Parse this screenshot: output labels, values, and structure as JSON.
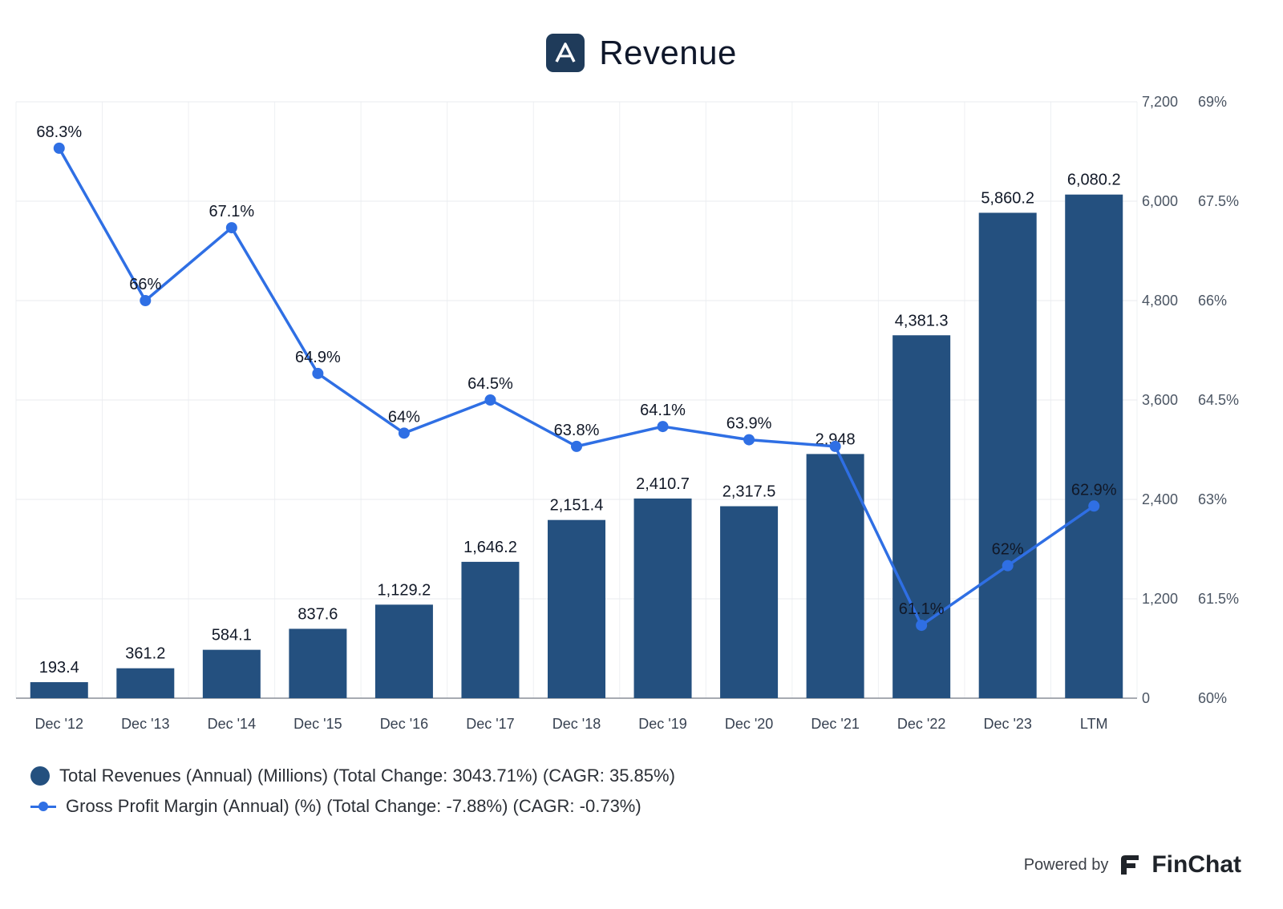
{
  "header": {
    "title": "Revenue",
    "logo_icon": "logo-a-icon"
  },
  "chart_data": {
    "type": "bar",
    "categories": [
      "Dec '12",
      "Dec '13",
      "Dec '14",
      "Dec '15",
      "Dec '16",
      "Dec '17",
      "Dec '18",
      "Dec '19",
      "Dec '20",
      "Dec '21",
      "Dec '22",
      "Dec '23",
      "LTM"
    ],
    "series": [
      {
        "name": "Total Revenues (Annual) (Millions) (Total Change: 3043.71%) (CAGR: 35.85%)",
        "type": "bar",
        "axis": "left",
        "color": "#24507f",
        "values": [
          193.4,
          361.2,
          584.1,
          837.6,
          1129.2,
          1646.2,
          2151.4,
          2410.7,
          2317.5,
          2948,
          4381.3,
          5860.2,
          6080.2
        ],
        "labels": [
          "193.4",
          "361.2",
          "584.1",
          "837.6",
          "1,129.2",
          "1,646.2",
          "2,151.4",
          "2,410.7",
          "2,317.5",
          "2,948",
          "4,381.3",
          "5,860.2",
          "6,080.2"
        ]
      },
      {
        "name": "Gross Profit Margin (Annual) (%) (Total Change: -7.88%) (CAGR: -0.73%)",
        "type": "line",
        "axis": "right",
        "color": "#2f6fe4",
        "values": [
          68.3,
          66,
          67.1,
          64.9,
          64,
          64.5,
          63.8,
          64.1,
          63.9,
          63.8,
          61.1,
          62,
          62.9
        ],
        "labels": [
          "68.3%",
          "66%",
          "67.1%",
          "64.9%",
          "64%",
          "64.5%",
          "63.8%",
          "64.1%",
          "63.9%",
          "",
          "61.1%",
          "62%",
          "62.9%"
        ]
      }
    ],
    "y_left": {
      "range": [
        0,
        7200
      ],
      "ticks": [
        "0",
        "1,200",
        "2,400",
        "3,600",
        "4,800",
        "6,000",
        "7,200"
      ]
    },
    "y_right": {
      "range": [
        60,
        69
      ],
      "ticks": [
        "60%",
        "61.5%",
        "63%",
        "64.5%",
        "66%",
        "67.5%",
        "69%"
      ]
    },
    "grid": true,
    "legend_position": "bottom-left"
  },
  "legend": {
    "revenue_label": "Total Revenues (Annual) (Millions) (Total Change: 3043.71%) (CAGR: 35.85%)",
    "margin_label": "Gross Profit Margin (Annual) (%) (Total Change: -7.88%) (CAGR: -0.73%)"
  },
  "footer": {
    "powered_by": "Powered by",
    "brand": "FinChat",
    "brand_icon": "finchat-logo-icon"
  }
}
